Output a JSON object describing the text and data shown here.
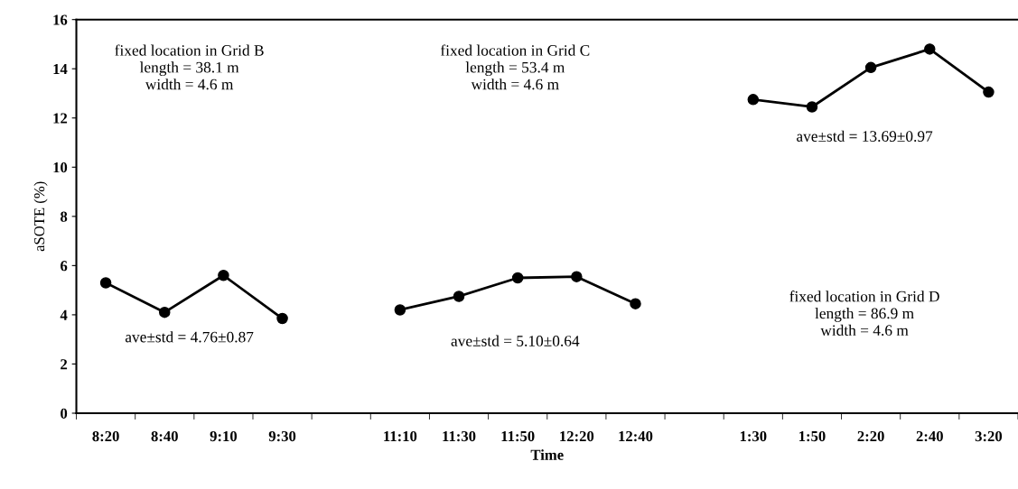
{
  "chart_data": {
    "type": "line",
    "xlabel": "Time",
    "ylabel": "aSOTE (%)",
    "categories": [
      "8:20",
      "8:40",
      "9:10",
      "9:30",
      null,
      "11:10",
      "11:30",
      "11:50",
      "12:20",
      "12:40",
      null,
      "1:30",
      "1:50",
      "2:20",
      "2:40",
      "3:20"
    ],
    "series": [
      {
        "color": "#000000",
        "values": [
          5.3,
          4.1,
          5.6,
          3.85,
          null,
          null,
          null,
          null,
          null,
          null,
          null,
          null,
          null,
          null,
          null,
          null
        ]
      },
      {
        "color": "#000000",
        "values": [
          null,
          null,
          null,
          null,
          null,
          4.2,
          4.75,
          5.5,
          5.55,
          4.45,
          null,
          null,
          null,
          null,
          null,
          null
        ]
      },
      {
        "color": "#000000",
        "values": [
          null,
          null,
          null,
          null,
          null,
          null,
          null,
          null,
          null,
          null,
          null,
          12.75,
          12.45,
          14.05,
          14.8,
          13.05
        ]
      }
    ],
    "ylim": [
      0,
      16
    ],
    "yticks": [
      0,
      2,
      4,
      6,
      8,
      10,
      12,
      14,
      16
    ],
    "grid": false,
    "marker": "circle",
    "line_style": "solid",
    "annotations": [
      "fixed location in Grid B\nlength = 38.1 m\nwidth = 4.6 m",
      "ave±std = 4.76±0.87",
      "fixed location in Grid C\nlength = 53.4 m\nwidth = 4.6 m",
      "ave±std = 5.10±0.64",
      "ave±std = 13.69±0.97",
      "fixed location in Grid D\nlength = 86.9 m\nwidth = 4.6 m"
    ]
  }
}
